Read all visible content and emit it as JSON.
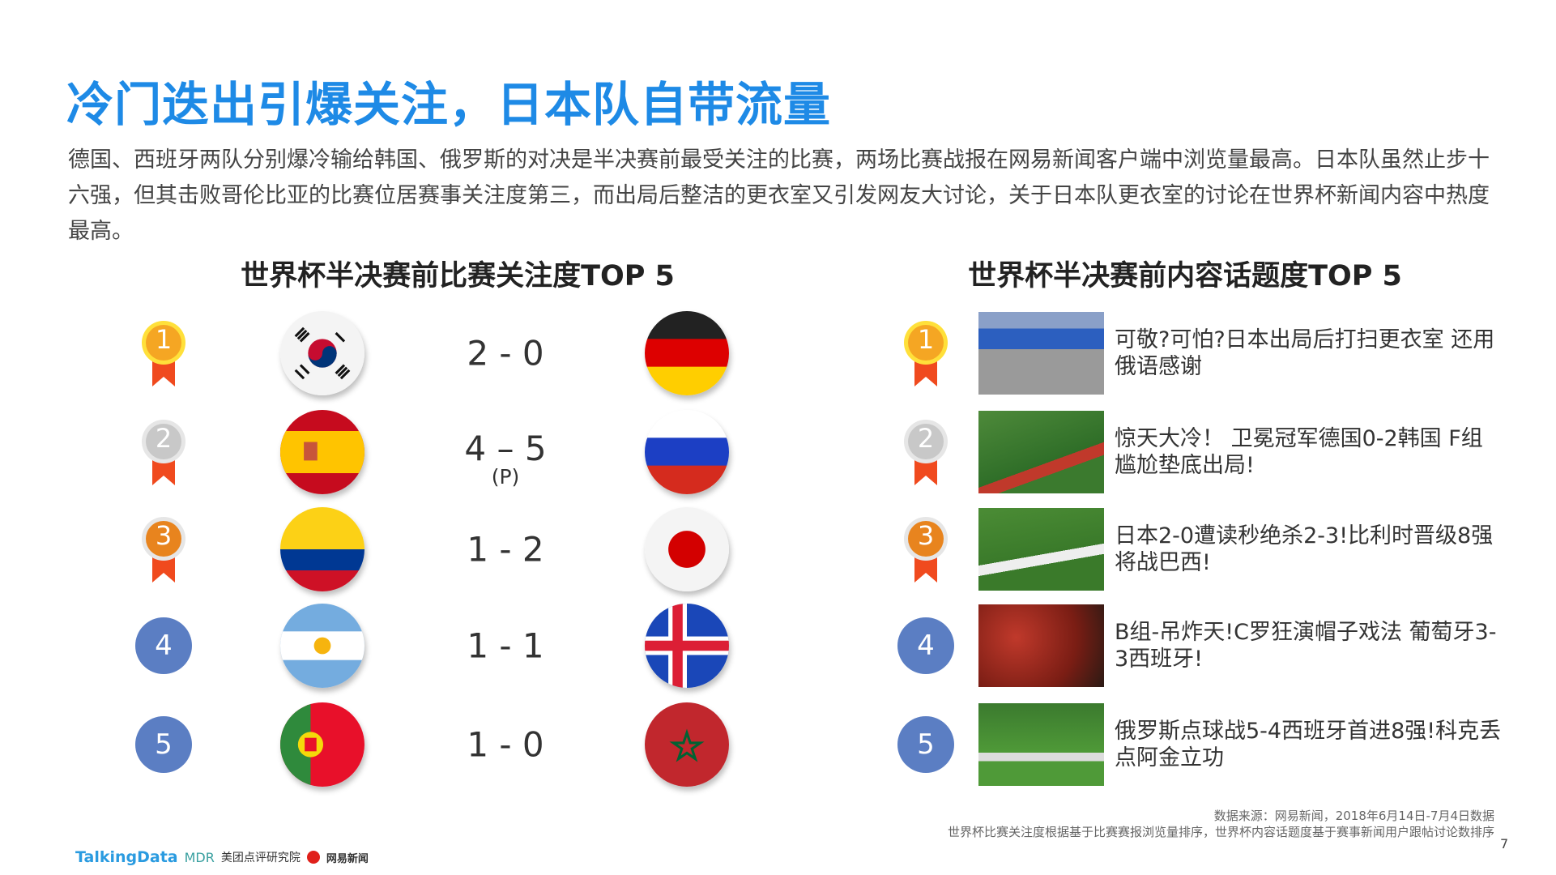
{
  "title": "冷门迭出引爆关注，日本队自带流量",
  "description": "德国、西班牙两队分别爆冷输给韩国、俄罗斯的对决是半决赛前最受关注的比赛，两场比赛战报在网易新闻客户端中浏览量最高。日本队虽然止步十六强，但其击败哥伦比亚的比赛位居赛事关注度第三，而出局后整洁的更衣室又引发网友大讨论，关于日本队更衣室的讨论在世界杯新闻内容中热度最高。",
  "left": {
    "heading": "世界杯半决赛前比赛关注度TOP 5",
    "matches": [
      {
        "rank": "1",
        "team1": "Korea",
        "team2": "Germany",
        "score": "2 - 0"
      },
      {
        "rank": "2",
        "team1": "Spain",
        "team2": "Russia",
        "score": "4 – 5",
        "note": "(P)"
      },
      {
        "rank": "3",
        "team1": "Colombia",
        "team2": "Japan",
        "score": "1 - 2"
      },
      {
        "rank": "4",
        "team1": "Argentina",
        "team2": "Iceland",
        "score": "1 - 1"
      },
      {
        "rank": "5",
        "team1": "Portugal",
        "team2": "Morocco",
        "score": "1 - 0"
      }
    ]
  },
  "right": {
    "heading": "世界杯半决赛前内容话题度TOP 5",
    "items": [
      {
        "rank": "1",
        "text": "可敬?可怕?日本出局后打扫更衣室 还用俄语感谢"
      },
      {
        "rank": "2",
        "text": "惊天大冷！ 卫冕冠军德国0-2韩国 F组尴尬垫底出局!"
      },
      {
        "rank": "3",
        "text": "日本2-0遭读秒绝杀2-3!比利时晋级8强将战巴西!"
      },
      {
        "rank": "4",
        "text": "B组-吊炸天!C罗狂演帽子戏法 葡萄牙3-3西班牙!"
      },
      {
        "rank": "5",
        "text": "俄罗斯点球战5-4西班牙首进8强!科克丢点阿金立功"
      }
    ]
  },
  "footer": {
    "source": "数据来源：网易新闻，2018年6月14日-7月4日数据",
    "note": "世界杯比赛关注度根据基于比赛赛报浏览量排序，世界杯内容话题度基于赛事新闻用户跟帖讨论数排序",
    "page": "7",
    "logos": [
      "TalkingData",
      "MDR",
      "美团点评研究院",
      "网易新闻"
    ]
  },
  "colors": {
    "title": "#1e8ae6",
    "gold": "#f5a623",
    "silver": "#c8c8c8",
    "bronze": "#e8841e",
    "ribbon": "#f04a1e",
    "rank_circle": "#5b7ec3"
  }
}
